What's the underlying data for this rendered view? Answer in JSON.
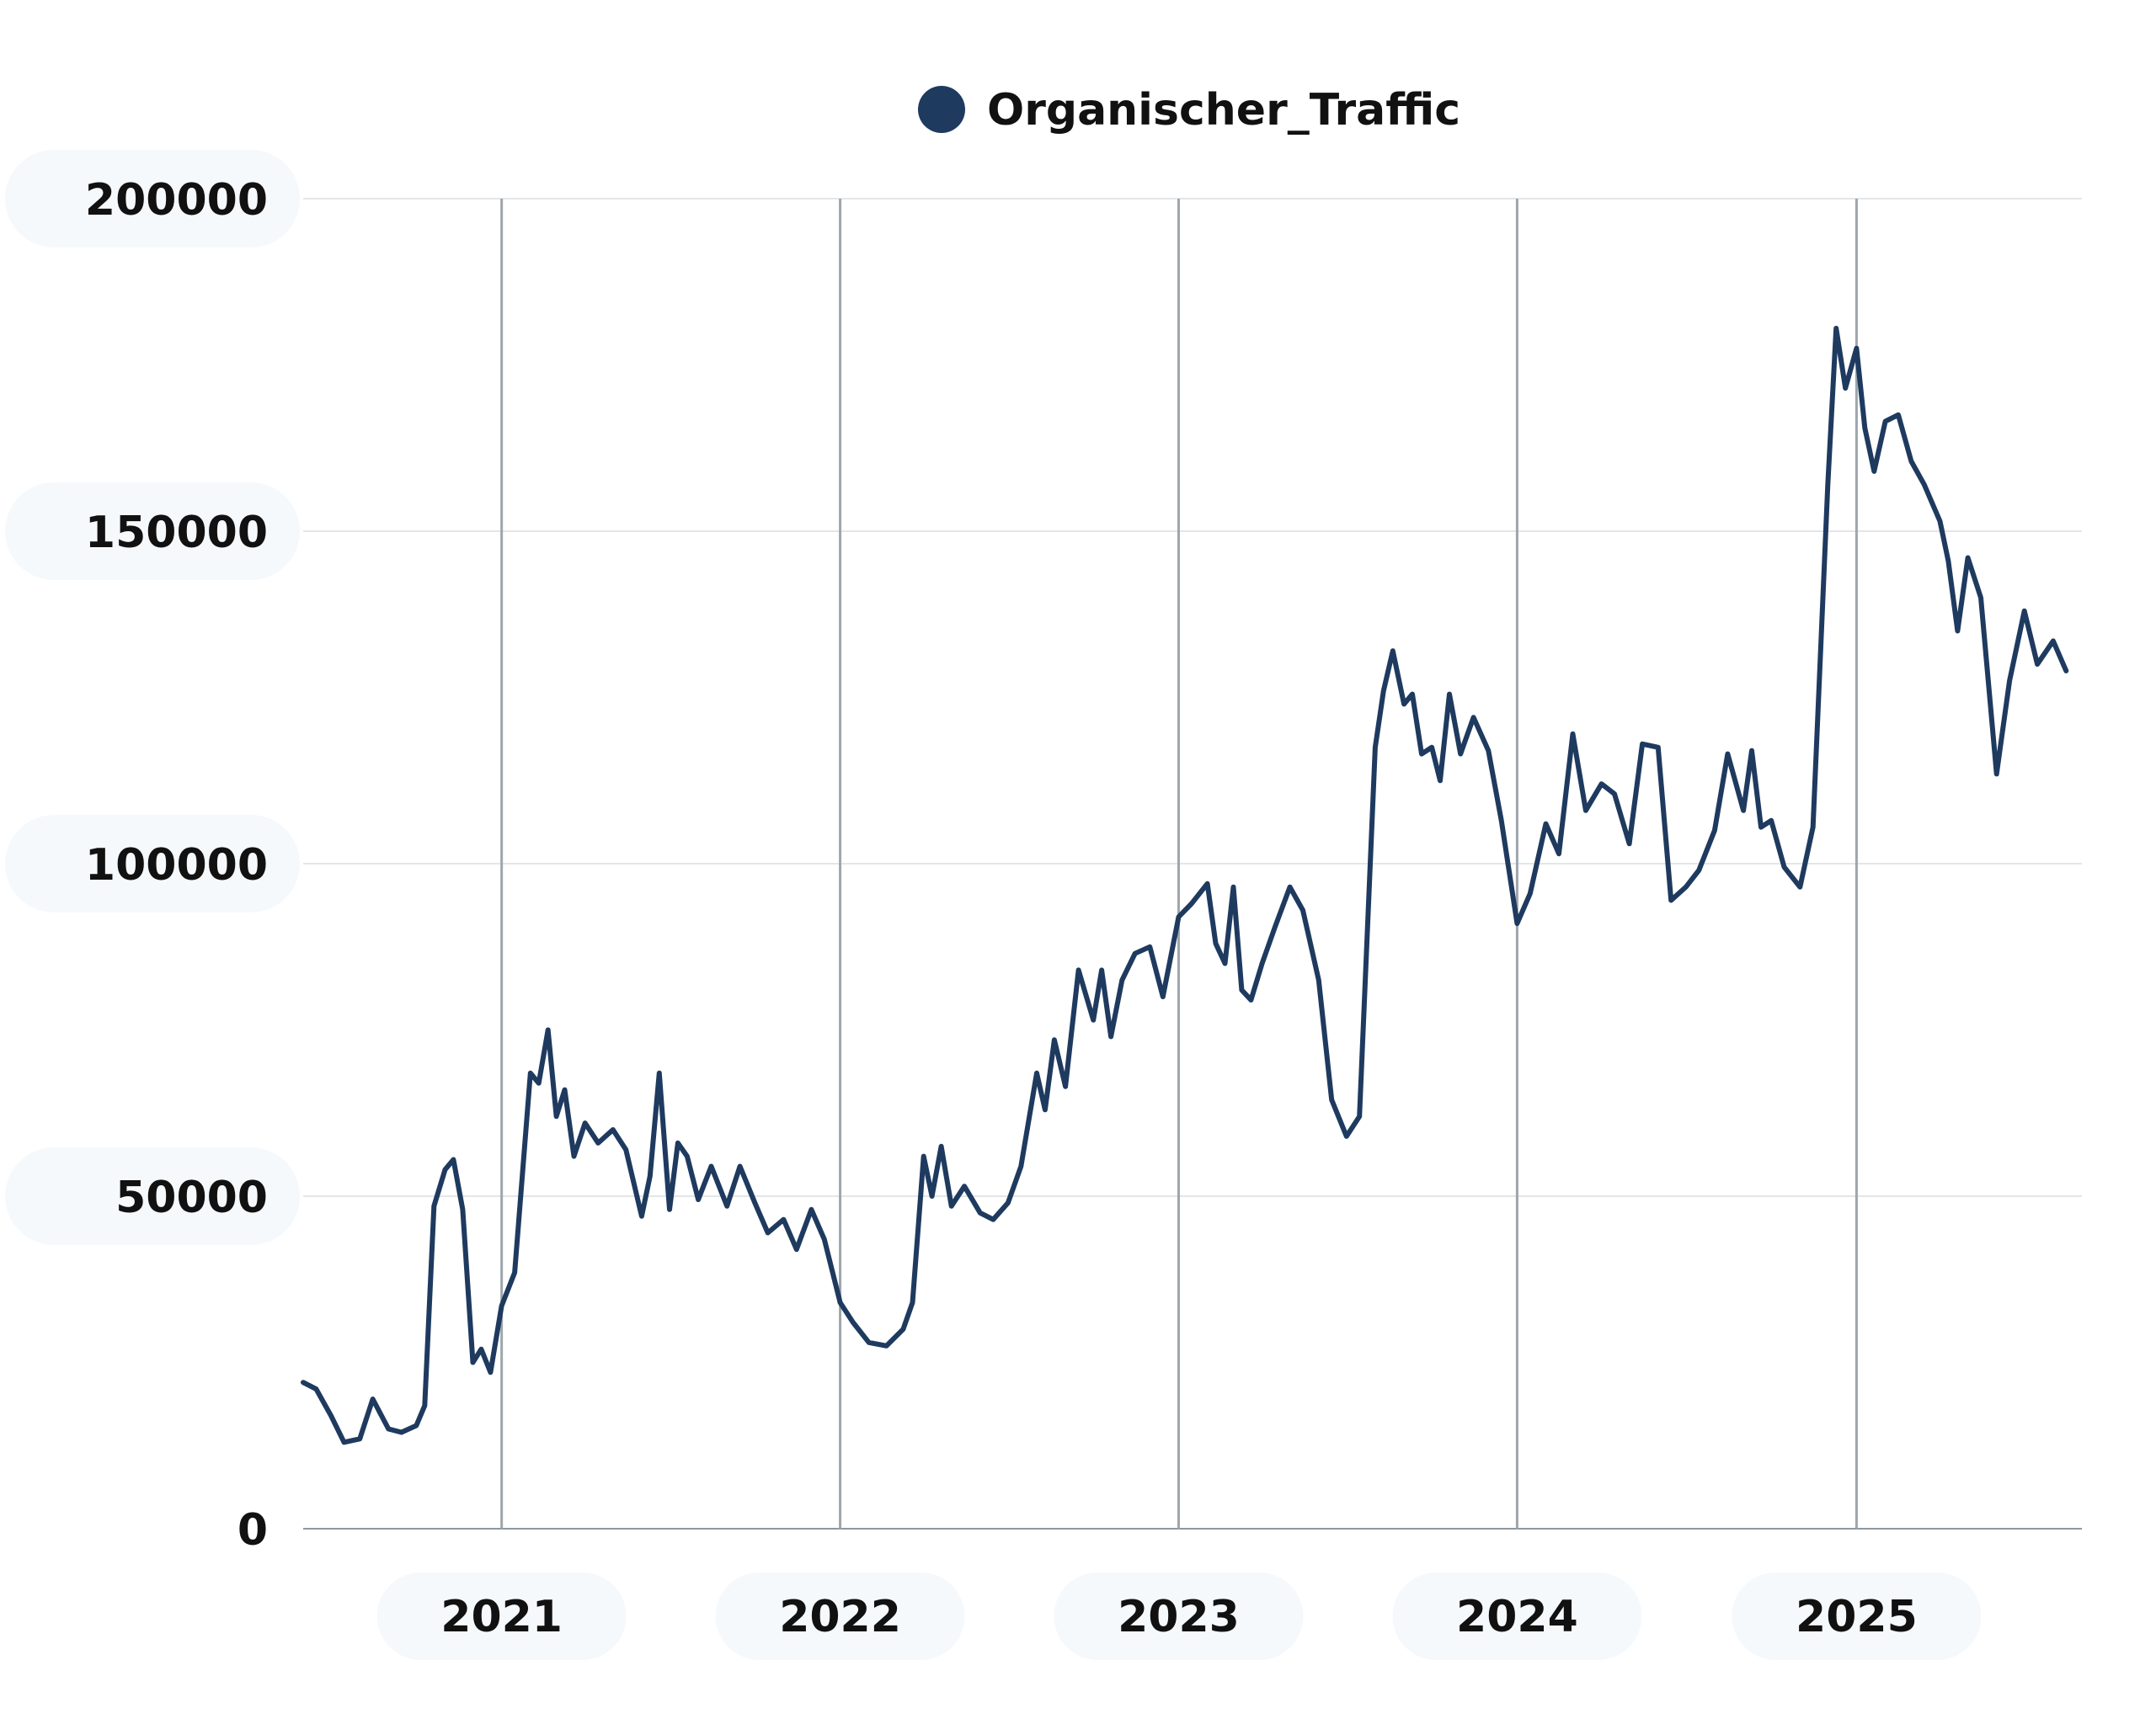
{
  "chart_data": {
    "type": "line",
    "legend": {
      "position": "top-center"
    },
    "x_axis": {
      "type": "date",
      "range": [
        "2020-06-01",
        "2025-09-01"
      ],
      "ticks": [
        "2021",
        "2022",
        "2023",
        "2024",
        "2025"
      ]
    },
    "y_axis": {
      "range": [
        0,
        200000
      ],
      "ticks": [
        "0",
        "50000",
        "100000",
        "150000",
        "200000"
      ]
    },
    "grid": {
      "horizontal": true,
      "vertical_at_year_ticks": true
    },
    "series": [
      {
        "name": "Organischer_Traffic",
        "color": "#1F3A5F",
        "points": [
          [
            "2020-06-01",
            22000
          ],
          [
            "2020-06-15",
            21000
          ],
          [
            "2020-07-01",
            17000
          ],
          [
            "2020-07-15",
            13000
          ],
          [
            "2020-08-01",
            13500
          ],
          [
            "2020-08-15",
            19500
          ],
          [
            "2020-09-01",
            15000
          ],
          [
            "2020-09-15",
            14500
          ],
          [
            "2020-10-01",
            15500
          ],
          [
            "2020-10-10",
            18500
          ],
          [
            "2020-10-20",
            48500
          ],
          [
            "2020-11-01",
            54000
          ],
          [
            "2020-11-10",
            55500
          ],
          [
            "2020-11-20",
            48000
          ],
          [
            "2020-12-01",
            25000
          ],
          [
            "2020-12-10",
            27000
          ],
          [
            "2020-12-20",
            23500
          ],
          [
            "2021-01-01",
            33500
          ],
          [
            "2021-01-15",
            38500
          ],
          [
            "2021-02-01",
            68500
          ],
          [
            "2021-02-10",
            67000
          ],
          [
            "2021-02-20",
            75000
          ],
          [
            "2021-03-01",
            62000
          ],
          [
            "2021-03-10",
            66000
          ],
          [
            "2021-03-20",
            56000
          ],
          [
            "2021-04-01",
            61000
          ],
          [
            "2021-04-15",
            58000
          ],
          [
            "2021-05-01",
            60000
          ],
          [
            "2021-05-15",
            57000
          ],
          [
            "2021-06-01",
            47000
          ],
          [
            "2021-06-10",
            53000
          ],
          [
            "2021-06-20",
            68500
          ],
          [
            "2021-07-01",
            48000
          ],
          [
            "2021-07-10",
            58000
          ],
          [
            "2021-07-20",
            56000
          ],
          [
            "2021-08-01",
            49500
          ],
          [
            "2021-08-15",
            54500
          ],
          [
            "2021-09-01",
            48500
          ],
          [
            "2021-09-15",
            54500
          ],
          [
            "2021-10-01",
            49000
          ],
          [
            "2021-10-15",
            44500
          ],
          [
            "2021-11-01",
            46500
          ],
          [
            "2021-11-15",
            42000
          ],
          [
            "2021-12-01",
            48000
          ],
          [
            "2021-12-15",
            43500
          ],
          [
            "2022-01-01",
            34000
          ],
          [
            "2022-01-15",
            31000
          ],
          [
            "2022-02-01",
            28000
          ],
          [
            "2022-02-20",
            27500
          ],
          [
            "2022-03-10",
            30000
          ],
          [
            "2022-03-20",
            34000
          ],
          [
            "2022-04-01",
            56000
          ],
          [
            "2022-04-10",
            50000
          ],
          [
            "2022-04-20",
            57500
          ],
          [
            "2022-05-01",
            48500
          ],
          [
            "2022-05-15",
            51500
          ],
          [
            "2022-06-01",
            47500
          ],
          [
            "2022-06-15",
            46500
          ],
          [
            "2022-07-01",
            49000
          ],
          [
            "2022-07-15",
            54500
          ],
          [
            "2022-08-01",
            68500
          ],
          [
            "2022-08-10",
            63000
          ],
          [
            "2022-08-20",
            73500
          ],
          [
            "2022-09-01",
            66500
          ],
          [
            "2022-09-15",
            84000
          ],
          [
            "2022-10-01",
            76500
          ],
          [
            "2022-10-10",
            84000
          ],
          [
            "2022-10-20",
            74000
          ],
          [
            "2022-11-01",
            82500
          ],
          [
            "2022-11-15",
            86500
          ],
          [
            "2022-12-01",
            87500
          ],
          [
            "2022-12-15",
            80000
          ],
          [
            "2023-01-01",
            92000
          ],
          [
            "2023-01-15",
            94000
          ],
          [
            "2023-02-01",
            97000
          ],
          [
            "2023-02-10",
            88000
          ],
          [
            "2023-02-20",
            85000
          ],
          [
            "2023-03-01",
            96500
          ],
          [
            "2023-03-10",
            81000
          ],
          [
            "2023-03-20",
            79500
          ],
          [
            "2023-04-01",
            85000
          ],
          [
            "2023-04-15",
            90500
          ],
          [
            "2023-05-01",
            96500
          ],
          [
            "2023-05-15",
            93000
          ],
          [
            "2023-06-01",
            82500
          ],
          [
            "2023-06-15",
            64500
          ],
          [
            "2023-07-01",
            59000
          ],
          [
            "2023-07-15",
            62000
          ],
          [
            "2023-08-01",
            117500
          ],
          [
            "2023-08-10",
            126000
          ],
          [
            "2023-08-20",
            132000
          ],
          [
            "2023-09-01",
            124000
          ],
          [
            "2023-09-10",
            125500
          ],
          [
            "2023-09-20",
            116500
          ],
          [
            "2023-10-01",
            117500
          ],
          [
            "2023-10-10",
            112500
          ],
          [
            "2023-10-20",
            125500
          ],
          [
            "2023-11-01",
            116500
          ],
          [
            "2023-11-15",
            122000
          ],
          [
            "2023-12-01",
            117000
          ],
          [
            "2023-12-15",
            106500
          ],
          [
            "2024-01-01",
            91000
          ],
          [
            "2024-01-15",
            95500
          ],
          [
            "2024-02-01",
            106000
          ],
          [
            "2024-02-15",
            101500
          ],
          [
            "2024-03-01",
            119500
          ],
          [
            "2024-03-15",
            108000
          ],
          [
            "2024-04-01",
            112000
          ],
          [
            "2024-04-15",
            110500
          ],
          [
            "2024-05-01",
            103000
          ],
          [
            "2024-05-15",
            118000
          ],
          [
            "2024-06-01",
            117500
          ],
          [
            "2024-06-15",
            94500
          ],
          [
            "2024-07-01",
            96500
          ],
          [
            "2024-07-15",
            99000
          ],
          [
            "2024-08-01",
            105000
          ],
          [
            "2024-08-15",
            116500
          ],
          [
            "2024-09-01",
            108000
          ],
          [
            "2024-09-10",
            117000
          ],
          [
            "2024-09-20",
            105500
          ],
          [
            "2024-10-01",
            106500
          ],
          [
            "2024-10-15",
            99500
          ],
          [
            "2024-11-01",
            96500
          ],
          [
            "2024-11-15",
            105500
          ],
          [
            "2024-12-01",
            157000
          ],
          [
            "2024-12-10",
            180500
          ],
          [
            "2024-12-20",
            171500
          ],
          [
            "2025-01-01",
            177500
          ],
          [
            "2025-01-10",
            165500
          ],
          [
            "2025-01-20",
            159000
          ],
          [
            "2025-02-01",
            166500
          ],
          [
            "2025-02-15",
            167500
          ],
          [
            "2025-03-01",
            160500
          ],
          [
            "2025-03-15",
            157000
          ],
          [
            "2025-04-01",
            151500
          ],
          [
            "2025-04-10",
            145500
          ],
          [
            "2025-04-20",
            135000
          ],
          [
            "2025-05-01",
            146000
          ],
          [
            "2025-05-15",
            140000
          ],
          [
            "2025-06-01",
            113500
          ],
          [
            "2025-06-15",
            127500
          ],
          [
            "2025-07-01",
            138000
          ],
          [
            "2025-07-15",
            130000
          ],
          [
            "2025-08-01",
            133500
          ],
          [
            "2025-08-15",
            129000
          ]
        ]
      }
    ]
  }
}
